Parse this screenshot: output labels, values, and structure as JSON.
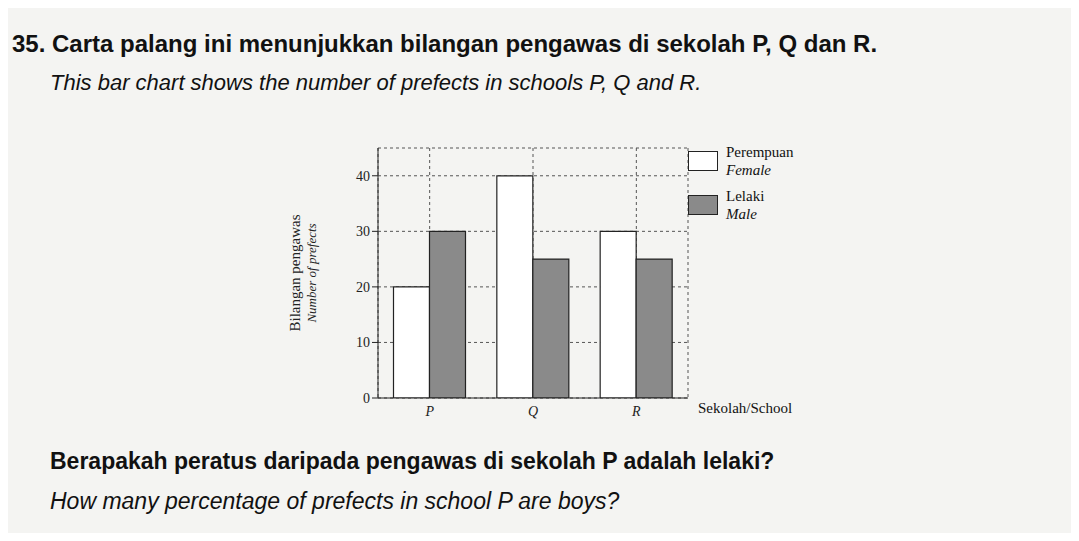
{
  "header": {
    "line_ms": "35. Carta palang ini menunjukkan bilangan pengawas di sekolah P, Q dan R.",
    "line_en": "This bar chart shows the number of prefects in schools P, Q and R."
  },
  "footer": {
    "line_ms": "Berapakah peratus daripada pengawas di sekolah P adalah lelaki?",
    "line_en": "How many percentage of prefects in school P are boys?"
  },
  "chart_data": {
    "type": "bar",
    "y_label": "Bilangan pengawas",
    "y_label_en": "Number of prefects",
    "x_label": "Sekolah/School",
    "categories": [
      "P",
      "Q",
      "R"
    ],
    "series": [
      {
        "name": "Perempuan\nFemale",
        "color": "#ffffff",
        "values": [
          20,
          40,
          30
        ]
      },
      {
        "name": "Lelaki\nMale",
        "color": "#8a8a8a",
        "values": [
          30,
          25,
          25
        ]
      }
    ],
    "ylim": [
      0,
      45
    ],
    "yticks": [
      0,
      10,
      20,
      30,
      40
    ],
    "grid": true,
    "legend": "upper right"
  }
}
